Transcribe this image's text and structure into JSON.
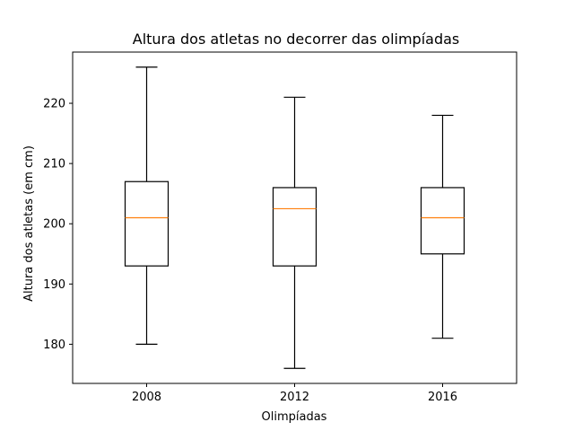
{
  "chart_data": {
    "type": "box",
    "title": "Altura dos atletas no decorrer das olimpíadas",
    "xlabel": "Olimpíadas",
    "ylabel": "Altura dos atletas (em cm)",
    "categories": [
      "2008",
      "2012",
      "2016"
    ],
    "boxes": [
      {
        "category": "2008",
        "whisker_low": 180,
        "q1": 193,
        "median": 201,
        "q3": 207,
        "whisker_high": 226
      },
      {
        "category": "2012",
        "whisker_low": 176,
        "q1": 193,
        "median": 202.5,
        "q3": 206,
        "whisker_high": 221
      },
      {
        "category": "2016",
        "whisker_low": 181,
        "q1": 195,
        "median": 201,
        "q3": 206,
        "whisker_high": 218
      }
    ],
    "ylim": [
      173.5,
      228.5
    ],
    "yticks": [
      180,
      190,
      200,
      210,
      220
    ],
    "grid": false,
    "colors": {
      "box": "#000000",
      "median": "#ff7f0e",
      "axis": "#000000"
    }
  }
}
